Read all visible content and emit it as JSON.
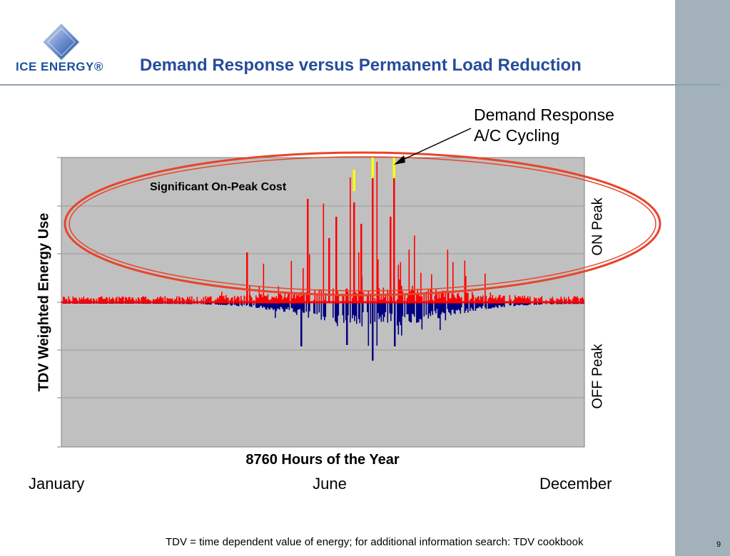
{
  "header": {
    "title": "Demand Response versus Permanent Load Reduction",
    "logo_text": "ICE ENERGY®"
  },
  "chart_data": {
    "type": "bar",
    "title": "",
    "xlabel": "8760 Hours of the Year",
    "ylabel": "TDV Weighted Energy Use",
    "x_range": [
      0,
      8760
    ],
    "month_labels": [
      "January",
      "June",
      "December"
    ],
    "region_labels": {
      "on_peak": "ON Peak",
      "off_peak": "OFF Peak"
    },
    "grid": true,
    "series": [
      {
        "name": "ON Peak",
        "color": "#ff0000"
      },
      {
        "name": "OFF Peak",
        "color": "#000080"
      }
    ],
    "annotations": {
      "demand_response": [
        "Demand Response",
        "A/C Cycling"
      ],
      "significant_cost": "Significant On-Peak Cost"
    },
    "colors": {
      "plot_bg": "#c0c0c0",
      "ellipse": "#e8442a",
      "highlight": "#ffff00",
      "baseline": "#ff0000"
    }
  },
  "footer": {
    "footnote": "TDV = time dependent value of energy; for additional information search: TDV cookbook",
    "page_number": "9"
  }
}
